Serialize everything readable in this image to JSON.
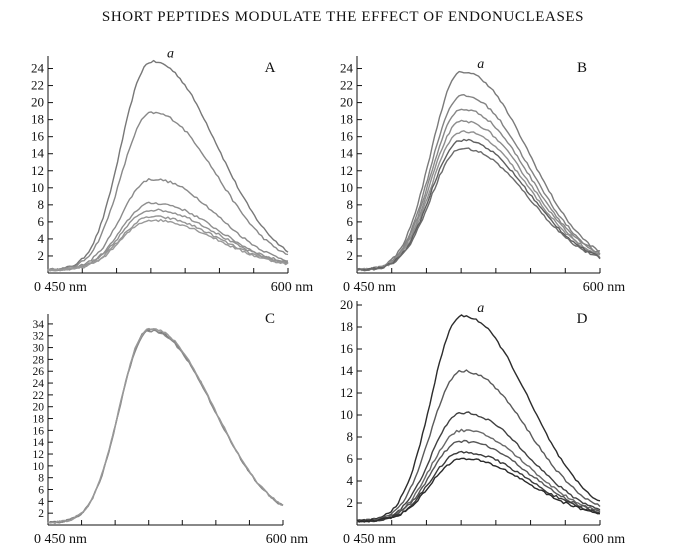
{
  "header": {
    "title": "SHORT PEPTIDES MODULATE THE EFFECT OF ENDONUCLEASES"
  },
  "chart_data": [
    {
      "type": "line",
      "panel_label": "A",
      "curve_tag": "a",
      "x_label_left": "0 450 nm",
      "x_label_right": "600 nm",
      "xlim": [
        450,
        600
      ],
      "ylim": [
        0,
        25
      ],
      "yticks": [
        2,
        4,
        6,
        8,
        10,
        12,
        14,
        16,
        18,
        20,
        22,
        24
      ],
      "peak_x": 515,
      "series": [
        {
          "peak": 24.8,
          "color": "#777777"
        },
        {
          "peak": 18.8,
          "color": "#888888"
        },
        {
          "peak": 11.0,
          "color": "#8a8a8a"
        },
        {
          "peak": 8.2,
          "color": "#8e8e8e"
        },
        {
          "peak": 7.4,
          "color": "#919191"
        },
        {
          "peak": 6.6,
          "color": "#959595"
        },
        {
          "peak": 6.2,
          "color": "#999999"
        }
      ]
    },
    {
      "type": "line",
      "panel_label": "B",
      "curve_tag": "a",
      "x_label_left": "0 450 nm",
      "x_label_right": "600 nm",
      "xlim": [
        450,
        600
      ],
      "ylim": [
        0,
        25
      ],
      "yticks": [
        2,
        4,
        6,
        8,
        10,
        12,
        14,
        16,
        18,
        20,
        22,
        24
      ],
      "peak_x": 515,
      "series": [
        {
          "peak": 23.6,
          "color": "#7a7a7a"
        },
        {
          "peak": 20.8,
          "color": "#828282"
        },
        {
          "peak": 19.2,
          "color": "#888888"
        },
        {
          "peak": 17.8,
          "color": "#8c8c8c"
        },
        {
          "peak": 16.6,
          "color": "#909090"
        },
        {
          "peak": 15.6,
          "color": "#5e5e5e"
        },
        {
          "peak": 14.6,
          "color": "#6a6a6a"
        }
      ]
    },
    {
      "type": "line",
      "panel_label": "C",
      "curve_tag": "",
      "x_label_left": "0 450 nm",
      "x_label_right": "600 nm",
      "xlim": [
        450,
        600
      ],
      "ylim": [
        0,
        35
      ],
      "yticks": [
        2,
        4,
        6,
        8,
        10,
        12,
        14,
        16,
        18,
        20,
        22,
        24,
        26,
        28,
        30,
        32,
        34
      ],
      "peak_x": 515,
      "series": [
        {
          "peak": 33.0,
          "color": "#7a7a7a"
        },
        {
          "peak": 32.8,
          "color": "#888888"
        },
        {
          "peak": 33.2,
          "color": "#999999"
        }
      ]
    },
    {
      "type": "line",
      "panel_label": "D",
      "curve_tag": "a",
      "x_label_left": "0 450 nm",
      "x_label_right": "600 nm",
      "xlim": [
        450,
        600
      ],
      "ylim": [
        0,
        20
      ],
      "yticks": [
        2,
        4,
        6,
        8,
        10,
        12,
        14,
        16,
        18,
        20
      ],
      "peak_x": 515,
      "series": [
        {
          "peak": 19.0,
          "color": "#2c2c2c"
        },
        {
          "peak": 14.0,
          "color": "#5a5a5a"
        },
        {
          "peak": 10.2,
          "color": "#404040"
        },
        {
          "peak": 8.6,
          "color": "#686868"
        },
        {
          "peak": 7.6,
          "color": "#555555"
        },
        {
          "peak": 6.6,
          "color": "#3a3a3a"
        },
        {
          "peak": 6.0,
          "color": "#2a2a2a"
        }
      ]
    }
  ]
}
